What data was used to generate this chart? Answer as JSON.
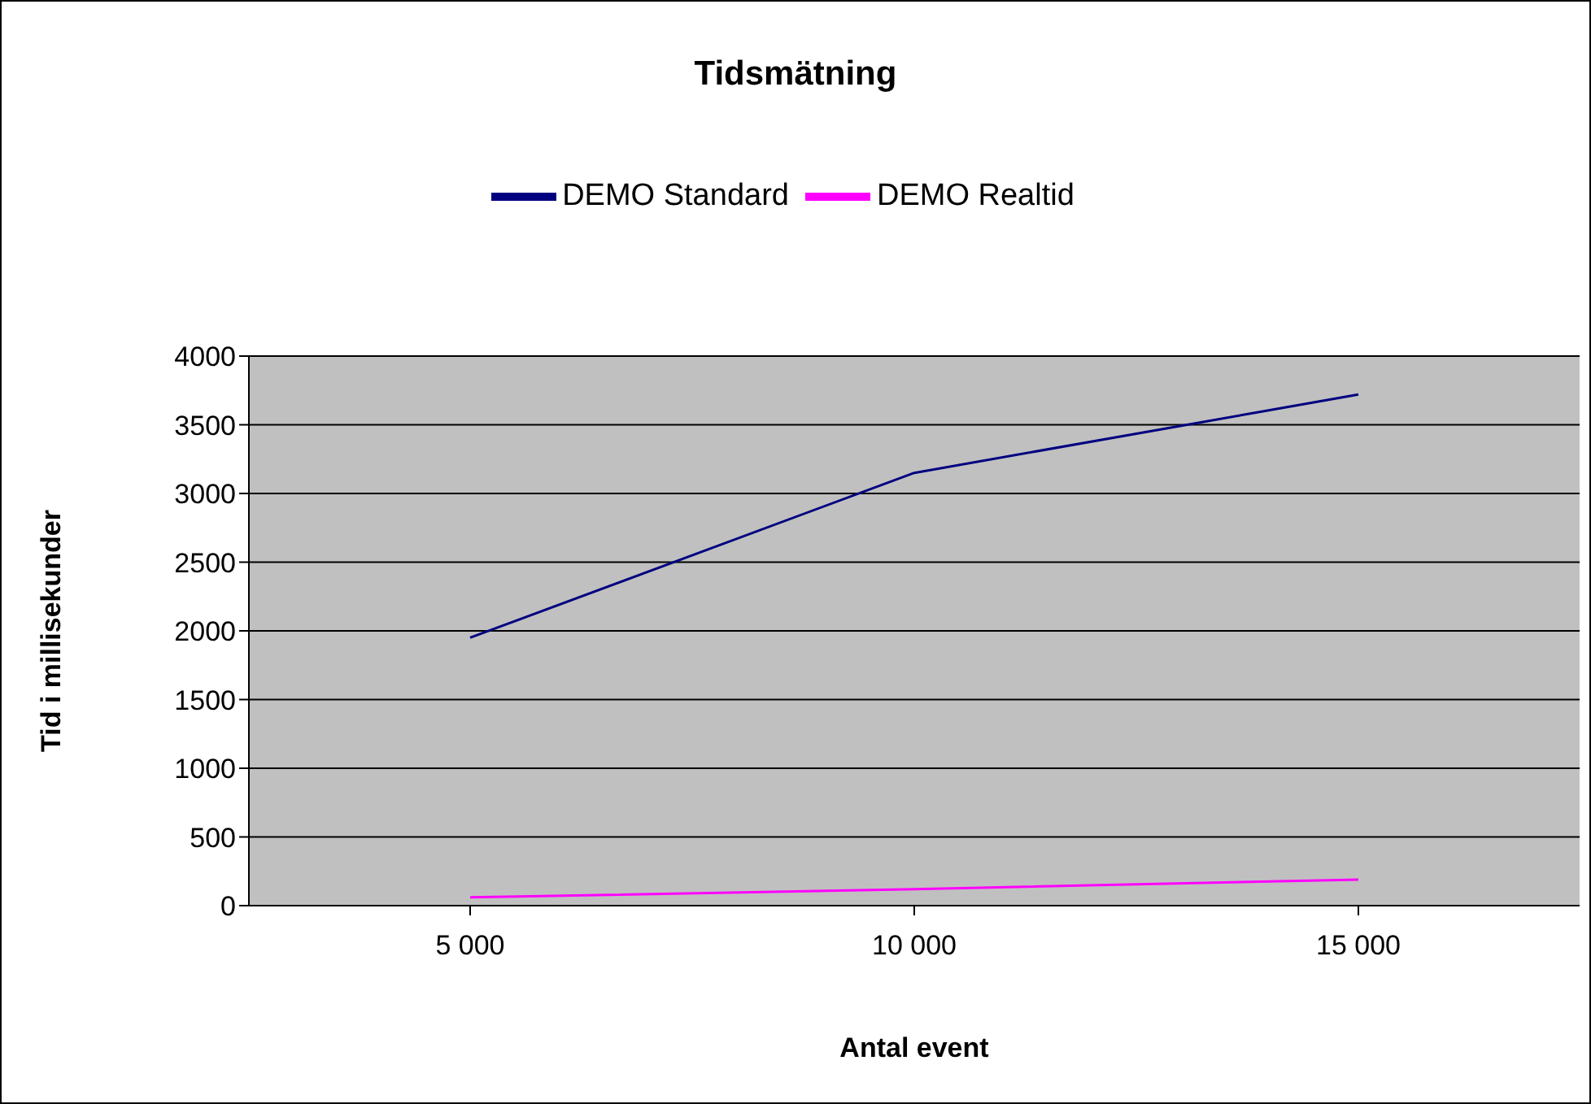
{
  "chart_data": {
    "type": "line",
    "title": "Tidsmätning",
    "xlabel": "Antal event",
    "ylabel": "Tid i millisekunder",
    "categories": [
      "5 000",
      "10 000",
      "15 000"
    ],
    "series": [
      {
        "name": "DEMO Standard",
        "color": "#000080",
        "values": [
          1950,
          3150,
          3720
        ]
      },
      {
        "name": "DEMO Realtid",
        "color": "#ff00ff",
        "values": [
          60,
          120,
          190
        ]
      }
    ],
    "ylim": [
      0,
      4000
    ],
    "yticks": [
      0,
      500,
      1000,
      1500,
      2000,
      2500,
      3000,
      3500,
      4000
    ],
    "grid": "y",
    "legend": "top",
    "marker": "none",
    "line_style": "solid"
  }
}
